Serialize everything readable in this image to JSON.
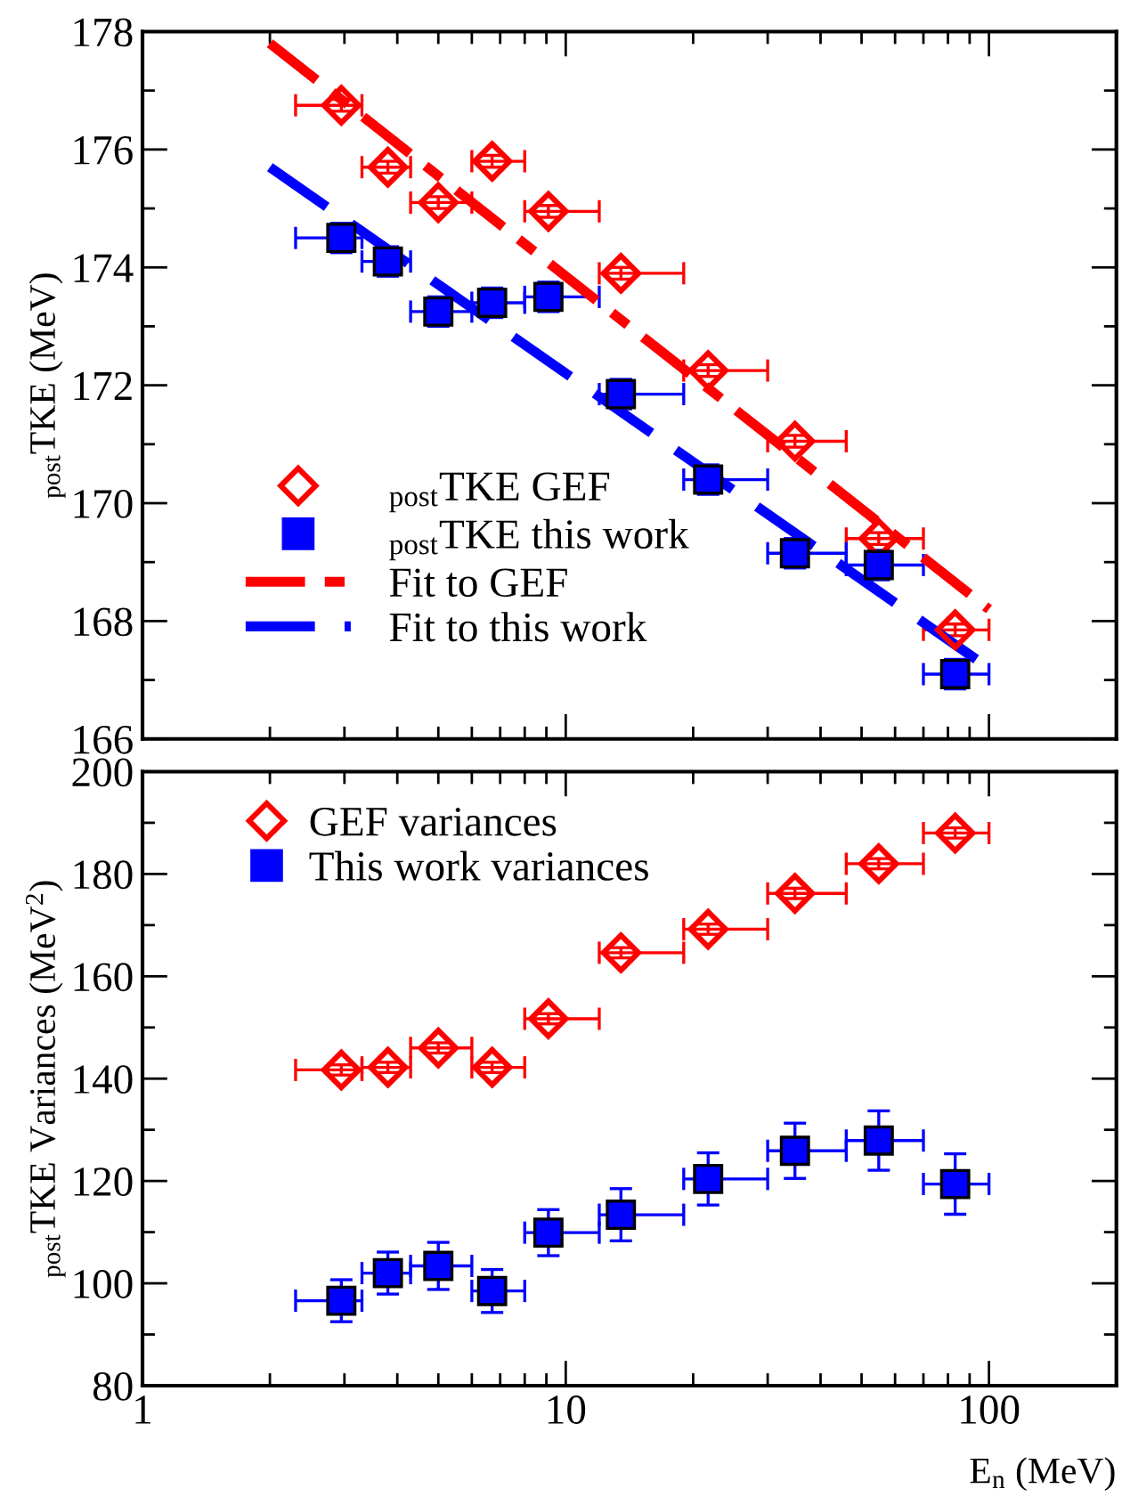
{
  "chart_data": [
    {
      "type": "scatter",
      "ylabel": "$_{post}$TKE (MeV)",
      "xlim": [
        1,
        200
      ],
      "xticks": [
        1,
        10,
        100
      ],
      "ylim": [
        166,
        178
      ],
      "yticks": [
        166,
        168,
        170,
        172,
        174,
        176,
        178
      ],
      "log": "x",
      "tick_labels": "y",
      "legend": "bottom left",
      "grid": false,
      "series": [
        {
          "name": "$_{post}$TKE GEF",
          "type": "scatter",
          "marker": "diamond",
          "color": "#ff0000",
          "x": [
            2.95,
            3.8,
            5,
            6.7,
            9.1,
            13.5,
            21.7,
            34.8,
            54.9,
            83.2
          ],
          "values": [
            176.75,
            175.7,
            175.1,
            175.8,
            174.95,
            173.9,
            172.25,
            171.05,
            169.4,
            167.85
          ],
          "errors": [
            0.1,
            0.1,
            0.1,
            0.1,
            0.1,
            0.1,
            0.1,
            0.1,
            0.1,
            0.1
          ],
          "xerrors": [
            [
              2.3,
              3.3
            ],
            [
              3.3,
              4.3
            ],
            [
              4.3,
              6
            ],
            [
              6,
              8
            ],
            [
              8,
              12
            ],
            [
              12,
              19
            ],
            [
              19,
              30
            ],
            [
              30,
              46
            ],
            [
              46,
              70
            ],
            [
              70,
              100
            ]
          ]
        },
        {
          "name": "$_{post}$TKE this work",
          "type": "scatter",
          "marker": "square",
          "color": "#0000ff",
          "x": [
            2.95,
            3.8,
            5,
            6.7,
            9.1,
            13.5,
            21.7,
            34.8,
            54.9,
            83.2
          ],
          "values": [
            174.5,
            174.1,
            173.25,
            173.4,
            173.5,
            171.85,
            170.4,
            169.15,
            168.95,
            167.1
          ],
          "errors": [
            0.25,
            0.25,
            0.25,
            0.25,
            0.25,
            0.25,
            0.25,
            0.25,
            0.25,
            0.25
          ],
          "xerrors": [
            [
              2.3,
              3.3
            ],
            [
              3.3,
              4.3
            ],
            [
              4.3,
              6
            ],
            [
              6,
              8
            ],
            [
              8,
              12
            ],
            [
              12,
              19
            ],
            [
              19,
              30
            ],
            [
              30,
              46
            ],
            [
              46,
              70
            ],
            [
              70,
              100
            ]
          ]
        },
        {
          "name": "Fit to GEF",
          "type": "line",
          "line_style": "dashdot",
          "color": "#ff0000",
          "x": [
            2,
            100
          ],
          "values": [
            177.8,
            168.2
          ]
        },
        {
          "name": "Fit to this work",
          "type": "line",
          "line_style": "dashed",
          "color": "#0000ff",
          "x": [
            2,
            100
          ],
          "values": [
            175.7,
            167.2
          ]
        }
      ]
    },
    {
      "type": "scatter",
      "xlabel": "E$_{n}$ (MeV)",
      "ylabel": "$_{post}$TKE Variances (MeV$^{2}$)",
      "xlim": [
        1,
        200
      ],
      "xticks": [
        1,
        10,
        100
      ],
      "ylim": [
        80,
        200
      ],
      "yticks": [
        80,
        100,
        120,
        140,
        160,
        180,
        200
      ],
      "log": "x",
      "legend": "top left",
      "grid": false,
      "series": [
        {
          "name": "GEF variances",
          "type": "scatter",
          "marker": "diamond",
          "color": "#ff0000",
          "x": [
            2.95,
            3.8,
            5,
            6.7,
            9.1,
            13.5,
            21.7,
            34.8,
            54.9,
            83.2
          ],
          "values": [
            141.7,
            142.2,
            146,
            142.2,
            151.7,
            164.6,
            169.2,
            176.2,
            182,
            188
          ],
          "errors": [
            1,
            1,
            1,
            1,
            1,
            1,
            1,
            1,
            1,
            1
          ],
          "xerrors": [
            [
              2.3,
              3.3
            ],
            [
              3.3,
              4.3
            ],
            [
              4.3,
              6
            ],
            [
              6,
              8
            ],
            [
              8,
              12
            ],
            [
              12,
              19
            ],
            [
              19,
              30
            ],
            [
              30,
              46
            ],
            [
              46,
              70
            ],
            [
              70,
              100
            ]
          ]
        },
        {
          "name": "This work variances",
          "type": "scatter",
          "marker": "square",
          "color": "#0000ff",
          "x": [
            2.95,
            3.8,
            5,
            6.7,
            9.1,
            13.5,
            21.7,
            34.8,
            54.9,
            83.2
          ],
          "values": [
            96.6,
            102,
            103.4,
            98.5,
            109.9,
            113.4,
            120.4,
            125.9,
            127.9,
            119.4
          ],
          "errors": [
            4.1,
            4.1,
            4.6,
            4.2,
            4.5,
            5.1,
            5.1,
            5.4,
            5.8,
            5.9
          ],
          "xerrors": [
            [
              2.3,
              3.3
            ],
            [
              3.3,
              4.3
            ],
            [
              4.3,
              6
            ],
            [
              6,
              8
            ],
            [
              8,
              12
            ],
            [
              12,
              19
            ],
            [
              19,
              30
            ],
            [
              30,
              46
            ],
            [
              46,
              70
            ],
            [
              70,
              100
            ]
          ]
        }
      ]
    }
  ]
}
